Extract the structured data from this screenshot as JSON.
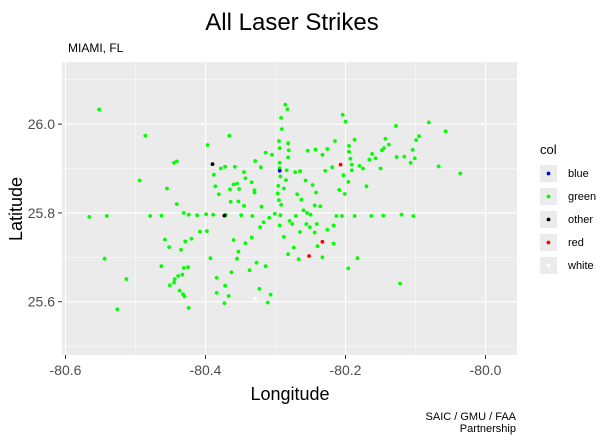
{
  "chart_data": {
    "type": "scatter",
    "title": "All Laser Strikes",
    "subtitle": "MIAMI, FL",
    "xlabel": "Longitude",
    "ylabel": "Latitude",
    "caption_lines": [
      "SAIC / GMU / FAA",
      "Partnership"
    ],
    "xlim": [
      -80.605,
      -79.955
    ],
    "ylim": [
      25.48,
      26.14
    ],
    "x_ticks": [
      -80.6,
      -80.4,
      -80.2,
      -80.0
    ],
    "x_tick_labels": [
      "-80.6",
      "-80.4",
      "-80.2",
      "-80.0"
    ],
    "y_ticks": [
      25.6,
      25.8,
      26.0
    ],
    "y_tick_labels": [
      "25.6",
      "25.8",
      "26.0"
    ],
    "grid": true,
    "legend": {
      "title": "col",
      "position": "right",
      "entries": [
        {
          "label": "blue",
          "color": "#0000ff"
        },
        {
          "label": "green",
          "color": "#00ff00"
        },
        {
          "label": "other",
          "color": "#000000"
        },
        {
          "label": "red",
          "color": "#ff0000"
        },
        {
          "label": "white",
          "color": "#ffffff"
        }
      ]
    },
    "series": [
      {
        "name": "green",
        "color": "#00ff00",
        "points": [
          [
            -80.552,
            26.033
          ],
          [
            -80.486,
            25.974
          ],
          [
            -80.445,
            25.913
          ],
          [
            -80.441,
            25.916
          ],
          [
            -80.397,
            25.953
          ],
          [
            -80.366,
            25.974
          ],
          [
            -80.358,
            25.904
          ],
          [
            -80.36,
            25.864
          ],
          [
            -80.352,
            25.854
          ],
          [
            -80.353,
            25.826
          ],
          [
            -80.345,
            25.816
          ],
          [
            -80.365,
            25.853
          ],
          [
            -80.343,
            25.878
          ],
          [
            -80.334,
            25.869
          ],
          [
            -80.33,
            25.846
          ],
          [
            -80.32,
            25.814
          ],
          [
            -80.314,
            25.936
          ],
          [
            -80.305,
            25.931
          ],
          [
            -80.292,
            26.014
          ],
          [
            -80.291,
            25.989
          ],
          [
            -80.295,
            25.962
          ],
          [
            -80.294,
            25.946
          ],
          [
            -80.294,
            25.913
          ],
          [
            -80.294,
            25.901
          ],
          [
            -80.293,
            25.882
          ],
          [
            -80.296,
            25.861
          ],
          [
            -80.297,
            25.844
          ],
          [
            -80.295,
            25.829
          ],
          [
            -80.292,
            25.818
          ],
          [
            -80.286,
            26.044
          ],
          [
            -80.283,
            26.034
          ],
          [
            -80.282,
            25.957
          ],
          [
            -80.281,
            25.941
          ],
          [
            -80.282,
            25.925
          ],
          [
            -80.284,
            25.896
          ],
          [
            -80.285,
            25.874
          ],
          [
            -80.288,
            25.855
          ],
          [
            -80.293,
            25.795
          ],
          [
            -80.28,
            25.782
          ],
          [
            -80.276,
            25.775
          ],
          [
            -80.269,
            25.842
          ],
          [
            -80.263,
            25.83
          ],
          [
            -80.272,
            25.892
          ],
          [
            -80.265,
            25.894
          ],
          [
            -80.257,
            25.873
          ],
          [
            -80.247,
            25.863
          ],
          [
            -80.242,
            25.846
          ],
          [
            -80.26,
            25.806
          ],
          [
            -80.255,
            25.8
          ],
          [
            -80.25,
            25.796
          ],
          [
            -80.244,
            25.817
          ],
          [
            -80.236,
            25.815
          ],
          [
            -80.241,
            25.775
          ],
          [
            -80.256,
            25.775
          ],
          [
            -80.265,
            25.757
          ],
          [
            -80.251,
            25.768
          ],
          [
            -80.244,
            25.756
          ],
          [
            -80.233,
            25.931
          ],
          [
            -80.226,
            25.944
          ],
          [
            -80.229,
            25.895
          ],
          [
            -80.219,
            25.903
          ],
          [
            -80.213,
            25.793
          ],
          [
            -80.209,
            25.852
          ],
          [
            -80.201,
            25.843
          ],
          [
            -80.215,
            25.962
          ],
          [
            -80.204,
            26.021
          ],
          [
            -80.2,
            26.006
          ],
          [
            -80.195,
            25.951
          ],
          [
            -80.195,
            25.938
          ],
          [
            -80.193,
            25.922
          ],
          [
            -80.191,
            25.909
          ],
          [
            -80.191,
            25.896
          ],
          [
            -80.203,
            25.885
          ],
          [
            -80.196,
            25.87
          ],
          [
            -80.187,
            25.965
          ],
          [
            -80.18,
            25.906
          ],
          [
            -80.175,
            25.9
          ],
          [
            -80.187,
            25.793
          ],
          [
            -80.163,
            25.793
          ],
          [
            -80.17,
            25.86
          ],
          [
            -80.166,
            25.92
          ],
          [
            -80.162,
            25.933
          ],
          [
            -80.157,
            25.923
          ],
          [
            -80.15,
            25.9
          ],
          [
            -80.148,
            25.941
          ],
          [
            -80.145,
            25.946
          ],
          [
            -80.128,
            25.996
          ],
          [
            -80.127,
            25.926
          ],
          [
            -80.138,
            25.954
          ],
          [
            -80.143,
            25.967
          ],
          [
            -80.146,
            25.794
          ],
          [
            -80.12,
            25.796
          ],
          [
            -80.122,
            25.641
          ],
          [
            -80.095,
            25.973
          ],
          [
            -80.099,
            25.964
          ],
          [
            -80.104,
            25.942
          ],
          [
            -80.101,
            25.923
          ],
          [
            -80.116,
            25.927
          ],
          [
            -80.107,
            25.913
          ],
          [
            -80.103,
            25.793
          ],
          [
            -80.081,
            26.004
          ],
          [
            -80.067,
            25.905
          ],
          [
            -80.057,
            25.984
          ],
          [
            -80.036,
            25.889
          ],
          [
            -80.183,
            25.698
          ],
          [
            -80.196,
            25.675
          ],
          [
            -80.217,
            25.731
          ],
          [
            -80.226,
            25.762
          ],
          [
            -80.217,
            25.772
          ],
          [
            -80.205,
            25.793
          ],
          [
            -80.566,
            25.791
          ],
          [
            -80.541,
            25.793
          ],
          [
            -80.544,
            25.697
          ],
          [
            -80.526,
            25.583
          ],
          [
            -80.513,
            25.651
          ],
          [
            -80.494,
            25.873
          ],
          [
            -80.479,
            25.793
          ],
          [
            -80.463,
            25.794
          ],
          [
            -80.455,
            25.855
          ],
          [
            -80.458,
            25.74
          ],
          [
            -80.451,
            25.637
          ],
          [
            -80.445,
            25.643
          ],
          [
            -80.439,
            25.658
          ],
          [
            -80.433,
            25.661
          ],
          [
            -80.431,
            25.676
          ],
          [
            -80.425,
            25.678
          ],
          [
            -80.412,
            25.795
          ],
          [
            -80.424,
            25.796
          ],
          [
            -80.431,
            25.8
          ],
          [
            -80.441,
            25.82
          ],
          [
            -80.452,
            25.723
          ],
          [
            -80.444,
            25.651
          ],
          [
            -80.437,
            25.625
          ],
          [
            -80.432,
            25.617
          ],
          [
            -80.424,
            25.586
          ],
          [
            -80.399,
            25.797
          ],
          [
            -80.393,
            25.698
          ],
          [
            -80.384,
            25.654
          ],
          [
            -80.372,
            25.636
          ],
          [
            -80.367,
            25.613
          ],
          [
            -80.373,
            25.597
          ],
          [
            -80.363,
            25.666
          ],
          [
            -80.355,
            25.697
          ],
          [
            -80.353,
            25.713
          ],
          [
            -80.36,
            25.739
          ],
          [
            -80.371,
            25.796
          ],
          [
            -80.381,
            25.842
          ],
          [
            -80.386,
            25.86
          ],
          [
            -80.388,
            25.886
          ],
          [
            -80.378,
            25.9
          ],
          [
            -80.372,
            25.904
          ],
          [
            -80.364,
            25.825
          ],
          [
            -80.349,
            25.795
          ],
          [
            -80.343,
            25.732
          ],
          [
            -80.334,
            25.745
          ],
          [
            -80.322,
            25.768
          ],
          [
            -80.317,
            25.779
          ],
          [
            -80.309,
            25.789
          ],
          [
            -80.301,
            25.798
          ],
          [
            -80.327,
            25.688
          ],
          [
            -80.314,
            25.68
          ],
          [
            -80.307,
            25.616
          ],
          [
            -80.311,
            25.598
          ],
          [
            -80.323,
            25.629
          ],
          [
            -80.337,
            25.671
          ],
          [
            -80.435,
            25.717
          ],
          [
            -80.429,
            25.736
          ],
          [
            -80.42,
            25.742
          ],
          [
            -80.408,
            25.758
          ],
          [
            -80.398,
            25.759
          ],
          [
            -80.389,
            25.796
          ],
          [
            -80.355,
            25.866
          ],
          [
            -80.345,
            25.892
          ],
          [
            -80.294,
            25.772
          ],
          [
            -80.288,
            25.746
          ],
          [
            -80.282,
            25.707
          ],
          [
            -80.267,
            25.696
          ],
          [
            -80.274,
            25.722
          ],
          [
            -80.24,
            25.725
          ],
          [
            -80.233,
            25.7
          ],
          [
            -80.321,
            25.903
          ],
          [
            -80.329,
            25.917
          ],
          [
            -80.33,
            25.851
          ],
          [
            -80.271,
            25.793
          ],
          [
            -80.333,
            25.793
          ],
          [
            -80.43,
            25.612
          ],
          [
            -80.384,
            25.62
          ],
          [
            -80.463,
            25.68
          ],
          [
            -80.254,
            25.94
          ],
          [
            -80.243,
            25.943
          ]
        ]
      },
      {
        "name": "red",
        "color": "#ff0000",
        "points": [
          [
            -80.207,
            25.909
          ],
          [
            -80.233,
            25.735
          ],
          [
            -80.252,
            25.703
          ]
        ]
      },
      {
        "name": "other",
        "color": "#000000",
        "points": [
          [
            -80.39,
            25.91
          ],
          [
            -80.373,
            25.794
          ]
        ]
      },
      {
        "name": "blue",
        "color": "#0000ff",
        "points": [
          [
            -80.294,
            25.895
          ]
        ]
      },
      {
        "name": "white",
        "color": "#ffffff",
        "points": [
          [
            -80.329,
            25.607
          ]
        ]
      }
    ]
  }
}
